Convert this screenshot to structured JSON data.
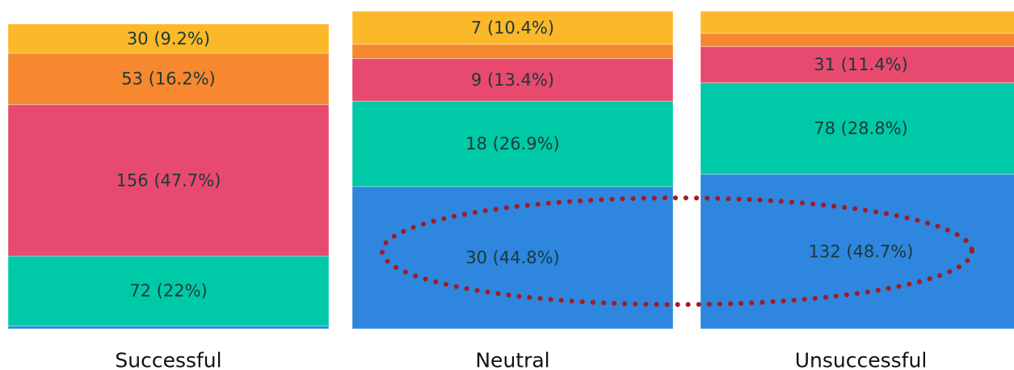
{
  "chart_data": {
    "type": "bar",
    "stacked": true,
    "normalized": true,
    "categories": [
      "Successful",
      "Neutral",
      "Unsuccessful"
    ],
    "series": [
      {
        "color": "#2e86de",
        "values": [
          0.9,
          44.8,
          48.7
        ],
        "labels": [
          "",
          "30 (44.8%)",
          "132 (48.7%)"
        ]
      },
      {
        "color": "#00c9a7",
        "values": [
          22.0,
          26.9,
          28.8
        ],
        "labels": [
          "72 (22%)",
          "18 (26.9%)",
          "78 (28.8%)"
        ]
      },
      {
        "color": "#e84a6f",
        "values": [
          47.7,
          13.4,
          11.4
        ],
        "labels": [
          "156 (47.7%)",
          "9 (13.4%)",
          "31 (11.4%)"
        ]
      },
      {
        "color": "#f7882f",
        "values": [
          16.2,
          4.5,
          4.2
        ],
        "labels": [
          "53 (16.2%)",
          "",
          ""
        ]
      },
      {
        "color": "#fbb829",
        "values": [
          9.2,
          10.4,
          6.9
        ],
        "labels": [
          "30 (9.2%)",
          "7 (10.4%)",
          ""
        ]
      }
    ],
    "ylim": [
      0,
      100
    ],
    "annotation": {
      "type": "dotted-ellipse",
      "color": "#a01c22",
      "highlights": "Neutral and Unsuccessful bottom segments"
    }
  }
}
